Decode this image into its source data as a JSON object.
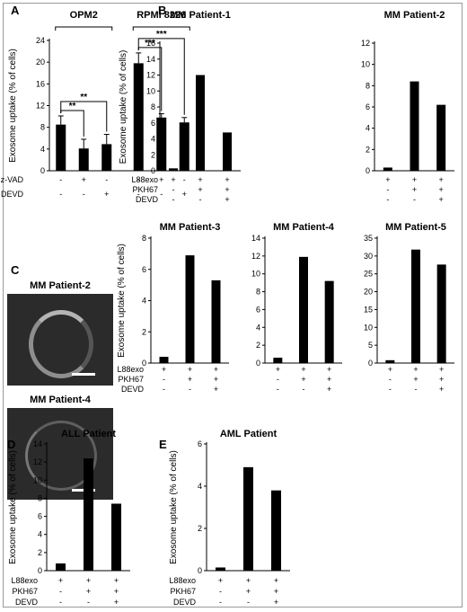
{
  "chart_data": [
    {
      "id": "A",
      "type": "bar",
      "panel_label": "A",
      "ylabel": "Exosome uptake (% of cells)",
      "ylim": [
        0,
        24
      ],
      "yticks": [
        0,
        4,
        8,
        12,
        16,
        20,
        24
      ],
      "groups": [
        "OPM2",
        "RPMI 8226"
      ],
      "values": [
        8.5,
        4.1,
        4.9,
        19.8,
        9.8,
        8.9
      ],
      "errors": [
        1.6,
        1.7,
        1.8,
        1.9,
        0.7,
        0.9
      ],
      "row_labels": [
        "z-VAD",
        "DEVD"
      ],
      "rows": [
        [
          "-",
          "+",
          "-",
          "-",
          "+",
          "-"
        ],
        [
          "-",
          "-",
          "+",
          "-",
          "-",
          "+"
        ]
      ],
      "significance": [
        {
          "from": 0,
          "to": 1,
          "label": "**"
        },
        {
          "from": 0,
          "to": 2,
          "label": "**"
        },
        {
          "from": 3,
          "to": 4,
          "label": "***"
        },
        {
          "from": 3,
          "to": 5,
          "label": "***"
        }
      ]
    },
    {
      "id": "B1",
      "type": "bar",
      "panel_label": "B",
      "title": "MM Patient-1",
      "ylabel": "Exosome uptake (% of cells)",
      "ylim": [
        0,
        16
      ],
      "yticks": [
        0,
        2,
        4,
        6,
        8,
        10,
        12,
        14,
        16
      ],
      "values": [
        0.3,
        12.0,
        4.8
      ],
      "row_labels": [
        "L88exo",
        "PKH67",
        "DEVD"
      ],
      "rows": [
        [
          "+",
          "+",
          "+"
        ],
        [
          "-",
          "+",
          "+"
        ],
        [
          "-",
          "-",
          "+"
        ]
      ]
    },
    {
      "id": "B2",
      "type": "bar",
      "title": "MM Patient-2",
      "ylim": [
        0,
        12
      ],
      "yticks": [
        0,
        2,
        4,
        6,
        8,
        10,
        12
      ],
      "values": [
        0.3,
        8.4,
        6.2
      ],
      "rows": [
        [
          "+",
          "+",
          "+"
        ],
        [
          "-",
          "+",
          "+"
        ],
        [
          "-",
          "-",
          "+"
        ]
      ]
    },
    {
      "id": "C1",
      "type": "bar",
      "panel_label": "C",
      "title": "MM Patient-3",
      "ylabel": "Exosome uptake (% of cells)",
      "ylim": [
        0,
        8
      ],
      "yticks": [
        0,
        2,
        4,
        6,
        8
      ],
      "values": [
        0.4,
        6.9,
        5.3
      ],
      "row_labels": [
        "L88exo",
        "PKH67",
        "DEVD"
      ],
      "rows": [
        [
          "+",
          "+",
          "+"
        ],
        [
          "-",
          "+",
          "+"
        ],
        [
          "-",
          "-",
          "+"
        ]
      ]
    },
    {
      "id": "C2",
      "type": "bar",
      "title": "MM Patient-4",
      "ylim": [
        0,
        14
      ],
      "yticks": [
        0,
        2,
        4,
        6,
        8,
        10,
        12,
        14
      ],
      "values": [
        0.6,
        11.9,
        9.2
      ],
      "rows": [
        [
          "+",
          "+",
          "+"
        ],
        [
          "-",
          "+",
          "+"
        ],
        [
          "-",
          "-",
          "+"
        ]
      ]
    },
    {
      "id": "C3",
      "type": "bar",
      "title": "MM Patient-5",
      "ylim": [
        0,
        35
      ],
      "yticks": [
        0,
        5,
        10,
        15,
        20,
        25,
        30,
        35
      ],
      "values": [
        0.8,
        31.8,
        27.6
      ],
      "rows": [
        [
          "+",
          "+",
          "+"
        ],
        [
          "-",
          "+",
          "+"
        ],
        [
          "-",
          "-",
          "+"
        ]
      ]
    },
    {
      "id": "D",
      "type": "bar",
      "panel_label": "D",
      "title": "ALL Patient",
      "ylabel": "Exosome uptake (% of cells)",
      "ylim": [
        0,
        14
      ],
      "yticks": [
        0,
        2,
        4,
        6,
        8,
        10,
        12,
        14
      ],
      "values": [
        0.8,
        12.4,
        7.4
      ],
      "row_labels": [
        "L88exo",
        "PKH67",
        "DEVD"
      ],
      "rows": [
        [
          "+",
          "+",
          "+"
        ],
        [
          "-",
          "+",
          "+"
        ],
        [
          "-",
          "-",
          "+"
        ]
      ]
    },
    {
      "id": "E",
      "type": "bar",
      "panel_label": "E",
      "title": "AML Patient",
      "ylabel": "Exosome uptake (% of cells)",
      "ylim": [
        0,
        6
      ],
      "yticks": [
        0,
        2,
        4,
        6
      ],
      "values": [
        0.15,
        4.9,
        3.8
      ],
      "row_labels": [
        "L88exo",
        "PKH67",
        "DEVD"
      ],
      "rows": [
        [
          "+",
          "+",
          "+"
        ],
        [
          "-",
          "+",
          "+"
        ],
        [
          "-",
          "-",
          "+"
        ]
      ]
    }
  ],
  "micrographs": [
    {
      "title": "MM Patient-2"
    },
    {
      "title": "MM Patient-4"
    }
  ],
  "colors": {
    "bar": "#000000",
    "axis": "#000000",
    "micrograph_bg": "#2b2b2b",
    "frame": "#9a9a9a"
  }
}
